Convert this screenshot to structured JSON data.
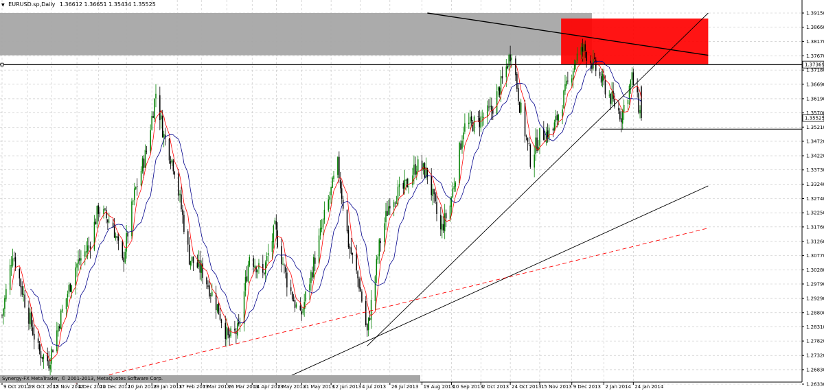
{
  "header": {
    "symbol_label": "EURUSD.sp,Daily",
    "ohlc_label": "1.36612 1.36651 1.35434 1.35525"
  },
  "footer": {
    "copyright": "Synergy-FX MetaTrader, © 2001-2013, MetaQuotes Software Corp."
  },
  "colors": {
    "bull_candle": "#008000",
    "bear_candle": "#000000",
    "ma_fast": "#ff0000",
    "ma_slow": "#00008b",
    "grid": "#c0c0c0",
    "resistance_zone": "#ff0000",
    "upper_zone": "#a6a6a6"
  },
  "chart_data": {
    "type": "candlestick",
    "title": "EURUSD.sp,Daily",
    "x_range": [
      "2012-10-09",
      "2014-01-30"
    ],
    "y_range": [
      1.2633,
      1.3915
    ],
    "price_labels": [
      "1.39150",
      "1.38660",
      "1.38170",
      "1.37670",
      "1.37180",
      "1.36690",
      "1.36190",
      "1.35700",
      "1.35210",
      "1.34720",
      "1.34220",
      "1.33730",
      "1.33240",
      "1.32740",
      "1.32250",
      "1.31760",
      "1.31260",
      "1.30770",
      "1.30280",
      "1.29790",
      "1.29290",
      "1.28800",
      "1.28310",
      "1.27820",
      "1.27320",
      "1.26830",
      "1.26330"
    ],
    "current_price_label": "1.35525",
    "marked_level_label": "1.37369",
    "date_labels": [
      "9 Oct 2012",
      "28 Oct 2012",
      "15 Nov 2012",
      "4 Dec 2012",
      "20 Dec 2012",
      "10 Jan 2013",
      "29 Jan 2013",
      "17 Feb 2013",
      "7 Mar 2013",
      "26 Mar 2013",
      "14 Apr 2013",
      "2 May 2013",
      "21 May 2013",
      "12 Jun 2013",
      "4 Jul 2013",
      "26 Jul 2013",
      "19 Aug 2013",
      "10 Sep 2013",
      "2 Oct 2013",
      "24 Oct 2013",
      "15 Nov 2013",
      "9 Dec 2013",
      "2 Jan 2014",
      "24 Jan 2014"
    ],
    "close_path": [
      {
        "date": "2012-10-09",
        "close": 1.287
      },
      {
        "date": "2012-10-17",
        "close": 1.309
      },
      {
        "date": "2012-10-26",
        "close": 1.292
      },
      {
        "date": "2012-11-05",
        "close": 1.275
      },
      {
        "date": "2012-11-13",
        "close": 1.271
      },
      {
        "date": "2012-11-22",
        "close": 1.287
      },
      {
        "date": "2012-12-03",
        "close": 1.304
      },
      {
        "date": "2012-12-13",
        "close": 1.311
      },
      {
        "date": "2012-12-20",
        "close": 1.324
      },
      {
        "date": "2012-12-31",
        "close": 1.318
      },
      {
        "date": "2013-01-07",
        "close": 1.305
      },
      {
        "date": "2013-01-16",
        "close": 1.329
      },
      {
        "date": "2013-01-25",
        "close": 1.344
      },
      {
        "date": "2013-02-01",
        "close": 1.364
      },
      {
        "date": "2013-02-07",
        "close": 1.349
      },
      {
        "date": "2013-02-15",
        "close": 1.338
      },
      {
        "date": "2013-02-26",
        "close": 1.307
      },
      {
        "date": "2013-03-08",
        "close": 1.302
      },
      {
        "date": "2013-03-19",
        "close": 1.29
      },
      {
        "date": "2013-03-27",
        "close": 1.279
      },
      {
        "date": "2013-04-04",
        "close": 1.282
      },
      {
        "date": "2013-04-12",
        "close": 1.308
      },
      {
        "date": "2013-04-22",
        "close": 1.301
      },
      {
        "date": "2013-05-01",
        "close": 1.317
      },
      {
        "date": "2013-05-10",
        "close": 1.299
      },
      {
        "date": "2013-05-20",
        "close": 1.286
      },
      {
        "date": "2013-05-28",
        "close": 1.301
      },
      {
        "date": "2013-06-07",
        "close": 1.321
      },
      {
        "date": "2013-06-17",
        "close": 1.339
      },
      {
        "date": "2013-06-25",
        "close": 1.312
      },
      {
        "date": "2013-07-03",
        "close": 1.298
      },
      {
        "date": "2013-07-09",
        "close": 1.281
      },
      {
        "date": "2013-07-18",
        "close": 1.311
      },
      {
        "date": "2013-07-26",
        "close": 1.327
      },
      {
        "date": "2013-08-06",
        "close": 1.331
      },
      {
        "date": "2013-08-15",
        "close": 1.339
      },
      {
        "date": "2013-08-23",
        "close": 1.336
      },
      {
        "date": "2013-09-02",
        "close": 1.316
      },
      {
        "date": "2013-09-09",
        "close": 1.325
      },
      {
        "date": "2013-09-19",
        "close": 1.352
      },
      {
        "date": "2013-09-30",
        "close": 1.354
      },
      {
        "date": "2013-10-10",
        "close": 1.358
      },
      {
        "date": "2013-10-18",
        "close": 1.368
      },
      {
        "date": "2013-10-25",
        "close": 1.379
      },
      {
        "date": "2013-10-31",
        "close": 1.36
      },
      {
        "date": "2013-11-08",
        "close": 1.341
      },
      {
        "date": "2013-11-15",
        "close": 1.349
      },
      {
        "date": "2013-11-25",
        "close": 1.351
      },
      {
        "date": "2013-12-04",
        "close": 1.364
      },
      {
        "date": "2013-12-12",
        "close": 1.376
      },
      {
        "date": "2013-12-18",
        "close": 1.379
      },
      {
        "date": "2013-12-27",
        "close": 1.372
      },
      {
        "date": "2014-01-06",
        "close": 1.363
      },
      {
        "date": "2014-01-15",
        "close": 1.356
      },
      {
        "date": "2014-01-23",
        "close": 1.369
      },
      {
        "date": "2014-01-30",
        "close": 1.3553
      }
    ],
    "annotations": [
      {
        "kind": "zone",
        "color": "#a6a6a6",
        "from_date": "2012-10-09",
        "to_date": "2013-12-24",
        "price_from": 1.3769,
        "price_to": 1.3915
      },
      {
        "kind": "zone",
        "color": "#ff0000",
        "from_date": "2013-12-01",
        "to_date": "2014-03-21",
        "price_from": 1.3739,
        "price_to": 1.3896
      },
      {
        "kind": "horizontal_line",
        "price": 1.37369
      },
      {
        "kind": "horizontal_line",
        "price": 1.3514,
        "from_date": "2013-12-30"
      },
      {
        "kind": "trendline",
        "from": [
          "2013-08-23",
          1.3915
        ],
        "to": [
          "2014-03-21",
          1.3769
        ]
      },
      {
        "kind": "trendline",
        "from": [
          "2013-07-09",
          1.2765
        ],
        "to": [
          "2014-03-21",
          1.3915
        ]
      },
      {
        "kind": "trendline",
        "from": [
          "2013-05-01",
          1.2637
        ],
        "to": [
          "2014-03-21",
          1.3318
        ]
      },
      {
        "kind": "trendline",
        "dashed": true,
        "color": "#ff0000",
        "from": [
          "2012-12-03",
          1.2637
        ],
        "to": [
          "2014-03-21",
          1.3172
        ]
      }
    ]
  }
}
